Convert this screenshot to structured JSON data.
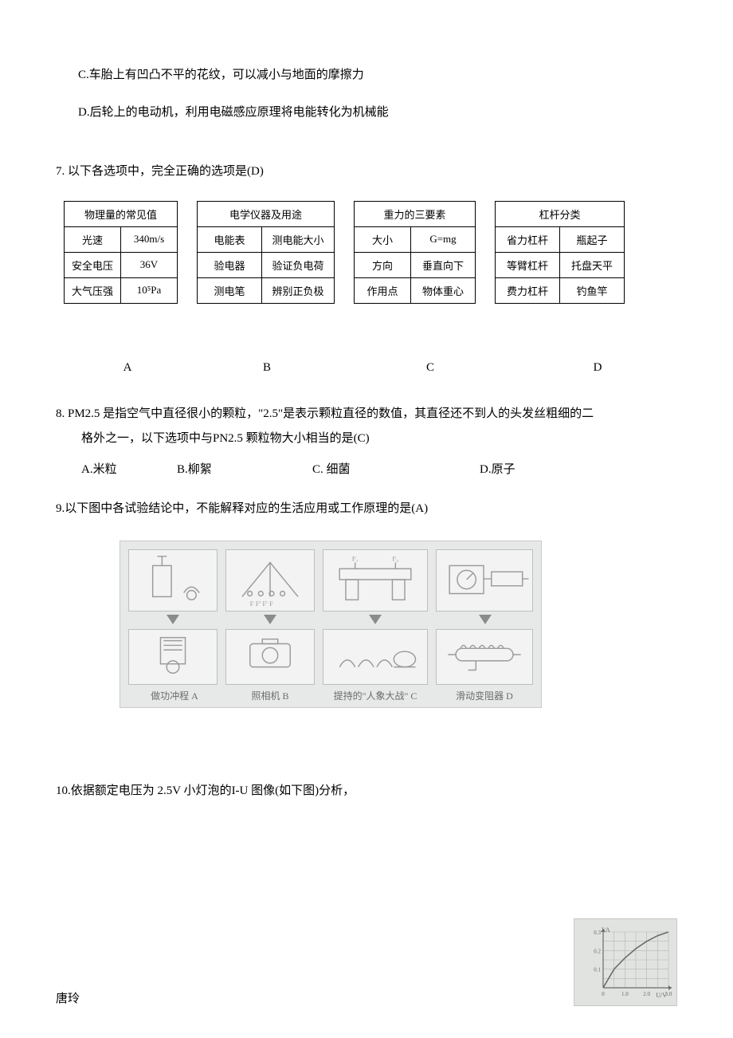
{
  "options_cd": {
    "c": "C.车胎上有凹凸不平的花纹，可以减小与地面的摩擦力",
    "d": "D.后轮上的电动机，利用电磁感应原理将电能转化为机械能"
  },
  "q7": {
    "stem": "7. 以下各选项中，完全正确的选项是(D)",
    "tableA": {
      "header": "物理量的常见值",
      "rows": [
        [
          "光速",
          "340m/s"
        ],
        [
          "安全电压",
          "36V"
        ],
        [
          "大气压强",
          "10⁵Pa"
        ]
      ]
    },
    "tableB": {
      "header": "电学仪器及用途",
      "rows": [
        [
          "电能表",
          "测电能大小"
        ],
        [
          "验电器",
          "验证负电荷"
        ],
        [
          "测电笔",
          "辨别正负极"
        ]
      ]
    },
    "tableC": {
      "header": "重力的三要素",
      "rows": [
        [
          "大小",
          "G=mg"
        ],
        [
          "方向",
          "垂直向下"
        ],
        [
          "作用点",
          "物体重心"
        ]
      ]
    },
    "tableD": {
      "header": "杠杆分类",
      "rows": [
        [
          "省力杠杆",
          "瓶起子"
        ],
        [
          "等臂杠杆",
          "托盘天平"
        ],
        [
          "费力杠杆",
          "钓鱼竿"
        ]
      ]
    },
    "labels": {
      "a": "A",
      "b": "B",
      "c": "C",
      "d": "D"
    }
  },
  "q8": {
    "stem_line1": "8. PM2.5 是指空气中直径很小的颗粒，\"2.5\"是表示颗粒直径的数值，其直径还不到人的头发丝粗细的二",
    "stem_line2": "格外之一，以下选项中与PN2.5 颗粒物大小相当的是(C)",
    "options": {
      "a": "A.米粒",
      "b": "B.柳絮",
      "c": "C.  细菌",
      "d": "D.原子"
    }
  },
  "q9": {
    "stem": "9.以下图中各试验结论中，不能解释对应的生活应用或工作原理的是(A)",
    "figure_labels": {
      "a": "做功冲程\nA",
      "b": "照相机\nB",
      "c": "提持的\"人象大战\"\nC",
      "d": "滑动变阻器\nD"
    },
    "figure_colors": {
      "panel_bg": "#f2f3f2",
      "panel_border": "#bdbfbd",
      "area_bg": "#e7e9e8",
      "arrow": "#8a8c8a",
      "sketch_stroke": "#9a9c9a"
    }
  },
  "q10": {
    "stem": "10.依据额定电压为 2.5V 小灯泡的I-U 图像(如下图)分析，",
    "graph": {
      "type": "line",
      "background_color": "#e1e3e0",
      "grid_color": "#b5b7b4",
      "curve_color": "#6a6c6a",
      "axis_color": "#6a6c6a",
      "xlabel": "U/V",
      "ylabel": "I/A",
      "xlim": [
        0,
        3.0
      ],
      "ylim": [
        0,
        0.3
      ],
      "xticks": [
        "0",
        "1.0",
        "2.0",
        "3.0"
      ],
      "yticks": [
        "0.1",
        "0.2",
        "0.3"
      ],
      "points": [
        [
          0,
          0
        ],
        [
          0.5,
          0.1
        ],
        [
          1.0,
          0.16
        ],
        [
          1.5,
          0.21
        ],
        [
          2.0,
          0.25
        ],
        [
          2.5,
          0.28
        ],
        [
          3.0,
          0.3
        ]
      ]
    }
  },
  "footer": {
    "name": "唐玲"
  }
}
